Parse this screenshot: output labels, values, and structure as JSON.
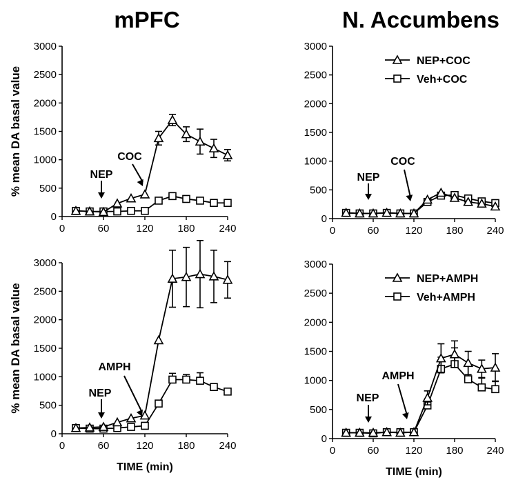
{
  "titles": {
    "left": "mPFC",
    "right": "N. Accumbens"
  },
  "chart_data": [
    {
      "type": "line",
      "panel": "mPFC-cocaine",
      "ylabel": "% mean DA basal value",
      "xlabel": "",
      "xlim": [
        0,
        240
      ],
      "ylim": [
        0,
        3000
      ],
      "xticks": [
        0,
        60,
        120,
        180,
        240
      ],
      "yticks": [
        0,
        500,
        1000,
        1500,
        2000,
        2500,
        3000
      ],
      "x": [
        20,
        40,
        60,
        80,
        100,
        120,
        140,
        160,
        180,
        200,
        220,
        240
      ],
      "series": [
        {
          "marker": "triangle",
          "values": [
            100,
            90,
            80,
            230,
            320,
            390,
            1380,
            1700,
            1450,
            1320,
            1200,
            1080
          ],
          "err": [
            0,
            0,
            0,
            0,
            0,
            0,
            120,
            100,
            130,
            220,
            160,
            100
          ]
        },
        {
          "marker": "square",
          "values": [
            100,
            90,
            90,
            90,
            100,
            100,
            280,
            360,
            310,
            280,
            240,
            240
          ],
          "err": [
            0,
            0,
            0,
            0,
            0,
            0,
            0,
            0,
            0,
            0,
            0,
            0
          ]
        }
      ],
      "annotations": [
        {
          "text": "NEP",
          "x": 60
        },
        {
          "text": "COC",
          "x": 120
        }
      ],
      "grid": false
    },
    {
      "type": "line",
      "panel": "NAc-cocaine",
      "ylabel": "",
      "xlabel": "",
      "xlim": [
        0,
        240
      ],
      "ylim": [
        0,
        3000
      ],
      "xticks": [
        0,
        60,
        120,
        180,
        240
      ],
      "yticks": [
        0,
        500,
        1000,
        1500,
        2000,
        2500,
        3000
      ],
      "x": [
        20,
        40,
        60,
        80,
        100,
        120,
        140,
        160,
        180,
        200,
        220,
        240
      ],
      "series": [
        {
          "name": "NEP+COC",
          "marker": "triangle",
          "values": [
            100,
            90,
            90,
            100,
            90,
            90,
            330,
            450,
            360,
            290,
            260,
            210
          ],
          "err": [
            0,
            0,
            0,
            0,
            0,
            0,
            0,
            0,
            0,
            0,
            0,
            0
          ]
        },
        {
          "name": "Veh+COC",
          "marker": "square",
          "values": [
            100,
            90,
            90,
            100,
            90,
            90,
            290,
            400,
            410,
            350,
            300,
            270
          ],
          "err": [
            0,
            0,
            0,
            0,
            0,
            0,
            0,
            0,
            0,
            0,
            0,
            0
          ]
        }
      ],
      "legend": "top-right",
      "annotations": [
        {
          "text": "NEP",
          "x": 60
        },
        {
          "text": "COC",
          "x": 120
        }
      ],
      "grid": false
    },
    {
      "type": "line",
      "panel": "mPFC-amphetamine",
      "ylabel": "% mean DA basal value",
      "xlabel": "TIME (min)",
      "xlim": [
        0,
        240
      ],
      "ylim": [
        0,
        3000
      ],
      "xticks": [
        0,
        60,
        120,
        180,
        240
      ],
      "yticks": [
        0,
        500,
        1000,
        1500,
        2000,
        2500,
        3000
      ],
      "x": [
        20,
        40,
        60,
        80,
        100,
        120,
        140,
        160,
        180,
        200,
        220,
        240
      ],
      "series": [
        {
          "marker": "triangle",
          "values": [
            100,
            110,
            120,
            200,
            270,
            320,
            1640,
            2720,
            2750,
            2800,
            2760,
            2700
          ],
          "err": [
            0,
            0,
            0,
            0,
            0,
            0,
            0,
            500,
            520,
            590,
            460,
            320
          ]
        },
        {
          "marker": "square",
          "values": [
            100,
            90,
            90,
            100,
            120,
            140,
            530,
            950,
            950,
            930,
            820,
            740
          ],
          "err": [
            0,
            0,
            0,
            0,
            0,
            0,
            0,
            110,
            90,
            140,
            0,
            0
          ]
        }
      ],
      "annotations": [
        {
          "text": "NEP",
          "x": 60
        },
        {
          "text": "AMPH",
          "x": 120
        }
      ],
      "grid": false
    },
    {
      "type": "line",
      "panel": "NAc-amphetamine",
      "ylabel": "",
      "xlabel": "TIME (min)",
      "xlim": [
        0,
        240
      ],
      "ylim": [
        0,
        3000
      ],
      "xticks": [
        0,
        60,
        120,
        180,
        240
      ],
      "yticks": [
        0,
        500,
        1000,
        1500,
        2000,
        2500,
        3000
      ],
      "x": [
        20,
        40,
        60,
        80,
        100,
        120,
        140,
        160,
        180,
        200,
        220,
        240
      ],
      "series": [
        {
          "name": "NEP+AMPH",
          "marker": "triangle",
          "values": [
            100,
            100,
            100,
            110,
            100,
            110,
            700,
            1380,
            1450,
            1300,
            1200,
            1220
          ],
          "err": [
            0,
            0,
            0,
            0,
            0,
            0,
            120,
            250,
            230,
            200,
            150,
            240
          ]
        },
        {
          "name": "Veh+AMPH",
          "marker": "square",
          "values": [
            100,
            100,
            90,
            110,
            110,
            110,
            570,
            1200,
            1280,
            1020,
            880,
            850
          ],
          "err": [
            0,
            0,
            0,
            0,
            0,
            0,
            110,
            200,
            280,
            230,
            160,
            140
          ]
        }
      ],
      "legend": "top-right",
      "annotations": [
        {
          "text": "NEP",
          "x": 60
        },
        {
          "text": "AMPH",
          "x": 120
        }
      ],
      "grid": false
    }
  ]
}
